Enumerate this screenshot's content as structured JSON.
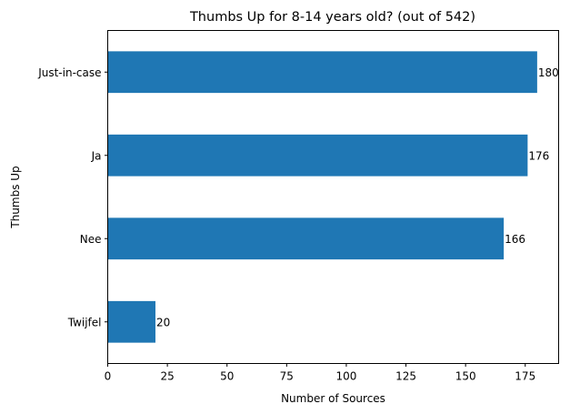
{
  "chart_data": {
    "type": "bar",
    "orientation": "horizontal",
    "title": "Thumbs Up for 8-14 years old? (out of 542)",
    "xlabel": "Number of Sources",
    "ylabel": "Thumbs Up",
    "categories": [
      "Just-in-case",
      "Ja",
      "Nee",
      "Twijfel"
    ],
    "values": [
      180,
      176,
      166,
      20
    ],
    "data_labels": [
      "180",
      "176",
      "166",
      "20"
    ],
    "xlim": [
      0,
      189
    ],
    "xticks": [
      0,
      25,
      50,
      75,
      100,
      125,
      150,
      175
    ],
    "grid": false,
    "legend": "none",
    "bar_color": "#1f77b4"
  }
}
